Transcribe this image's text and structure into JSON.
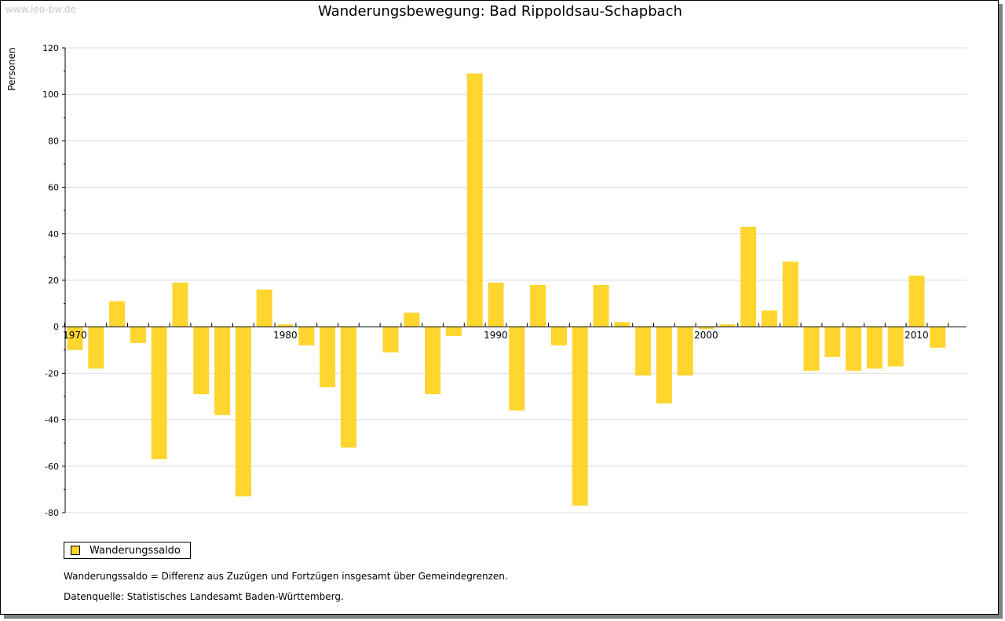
{
  "watermark": "www.leo-bw.de",
  "colors": {
    "bar": "#FFD52E",
    "grid": "#dcdcdc",
    "axis": "#000000"
  },
  "legend": {
    "label": "Wanderungssaldo"
  },
  "notes": [
    "Wanderungssaldo = Differenz aus Zuzügen und Fortzügen insgesamt über Gemeindegrenzen.",
    "Datenquelle: Statistisches Landesamt Baden-Württemberg."
  ],
  "chart_data": {
    "type": "bar",
    "title": "Wanderungsbewegung: Bad Rippoldsau-Schapbach",
    "xlabel": "",
    "ylabel": "Personen",
    "ylim": [
      -80,
      120
    ],
    "yticks": [
      -80,
      -60,
      -40,
      -20,
      0,
      20,
      40,
      60,
      80,
      100,
      120
    ],
    "xticks": [
      1970,
      1980,
      1990,
      2000,
      2010
    ],
    "grid": true,
    "legend_position": "bottom-left",
    "categories": [
      1970,
      1971,
      1972,
      1973,
      1974,
      1975,
      1976,
      1977,
      1978,
      1979,
      1980,
      1981,
      1982,
      1983,
      1984,
      1985,
      1986,
      1987,
      1988,
      1989,
      1990,
      1991,
      1992,
      1993,
      1994,
      1995,
      1996,
      1997,
      1998,
      1999,
      2000,
      2001,
      2002,
      2003,
      2004,
      2005,
      2006,
      2007,
      2008,
      2009,
      2010,
      2011
    ],
    "series": [
      {
        "name": "Wanderungssaldo",
        "values": [
          -10,
          -18,
          11,
          -7,
          -57,
          19,
          -29,
          -38,
          -73,
          16,
          1,
          -8,
          -26,
          -52,
          0,
          -11,
          6,
          -29,
          -4,
          109,
          19,
          -36,
          18,
          -8,
          -77,
          18,
          2,
          -21,
          -33,
          -21,
          -1,
          1,
          43,
          7,
          28,
          -19,
          -13,
          -19,
          -18,
          -17,
          22,
          -9
        ]
      }
    ]
  }
}
